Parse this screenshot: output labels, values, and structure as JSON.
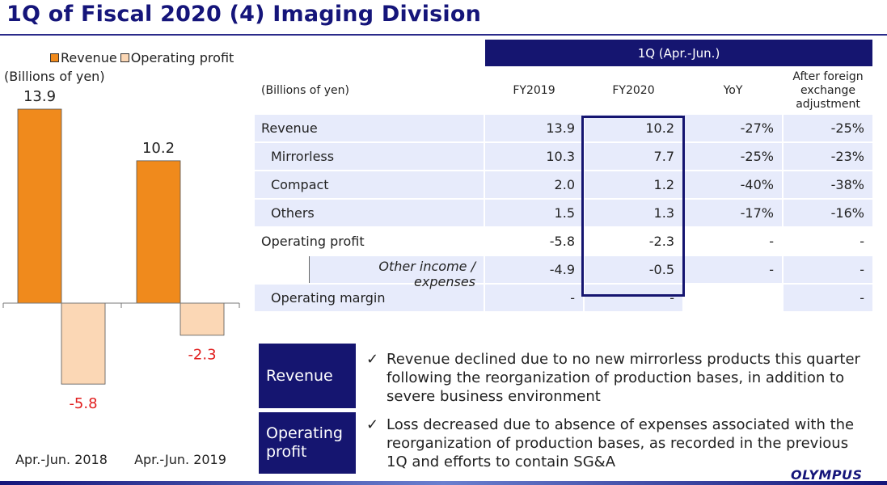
{
  "title": "1Q of Fiscal 2020 (4) Imaging Division",
  "legend": {
    "revenue": "Revenue",
    "operating_profit": "Operating profit"
  },
  "unit": "(Billions of yen)",
  "colors": {
    "navy": "#151570",
    "revenue": "#f08a1c",
    "operating_profit": "#fbd7b5",
    "negative_label": "#e11d1d",
    "row_bg": "#e7ebfb"
  },
  "chart_data": {
    "type": "bar",
    "categories": [
      "Apr.-Jun. 2018",
      "Apr.-Jun. 2019"
    ],
    "series": [
      {
        "name": "Revenue",
        "values": [
          13.9,
          10.2
        ]
      },
      {
        "name": "Operating profit",
        "values": [
          -5.8,
          -2.3
        ]
      }
    ],
    "value_labels": {
      "revenue": [
        "13.9",
        "10.2"
      ],
      "operating_profit": [
        "-5.8",
        "-2.3"
      ]
    },
    "ylim": [
      -7.0,
      13.9
    ]
  },
  "table": {
    "period_header": "1Q (Apr.-Jun.)",
    "columns": [
      "(Billions of yen)",
      "FY2019",
      "FY2020",
      "YoY",
      "After foreign\nexchange\nadjustment"
    ],
    "rows": [
      {
        "label": "Revenue",
        "fy2019": "13.9",
        "fy2020": "10.2",
        "yoy": "-27%",
        "fx": "-25%"
      },
      {
        "label": "Mirrorless",
        "fy2019": "10.3",
        "fy2020": "7.7",
        "yoy": "-25%",
        "fx": "-23%"
      },
      {
        "label": "Compact",
        "fy2019": "2.0",
        "fy2020": "1.2",
        "yoy": "-40%",
        "fx": "-38%"
      },
      {
        "label": "Others",
        "fy2019": "1.5",
        "fy2020": "1.3",
        "yoy": "-17%",
        "fx": "-16%"
      },
      {
        "label": "Operating profit",
        "fy2019": "-5.8",
        "fy2020": "-2.3",
        "yoy": "-",
        "fx": "-"
      },
      {
        "label": "Other income /\nexpenses",
        "fy2019": "-4.9",
        "fy2020": "-0.5",
        "yoy": "-",
        "fx": "-"
      },
      {
        "label": "Operating margin",
        "fy2019": "-",
        "fy2020": "-",
        "yoy": "",
        "fx": "-"
      }
    ]
  },
  "notes": [
    {
      "label": "Revenue",
      "check": "✓",
      "text": "Revenue declined due to no new mirrorless products this quarter following the reorganization of production bases, in addition to severe business environment"
    },
    {
      "label": "Operating\nprofit",
      "check": "✓",
      "text": "Loss decreased due to absence of expenses associated with the reorganization of production bases, as recorded in the previous 1Q and efforts to contain SG&A"
    }
  ],
  "logo": "OLYMPUS"
}
